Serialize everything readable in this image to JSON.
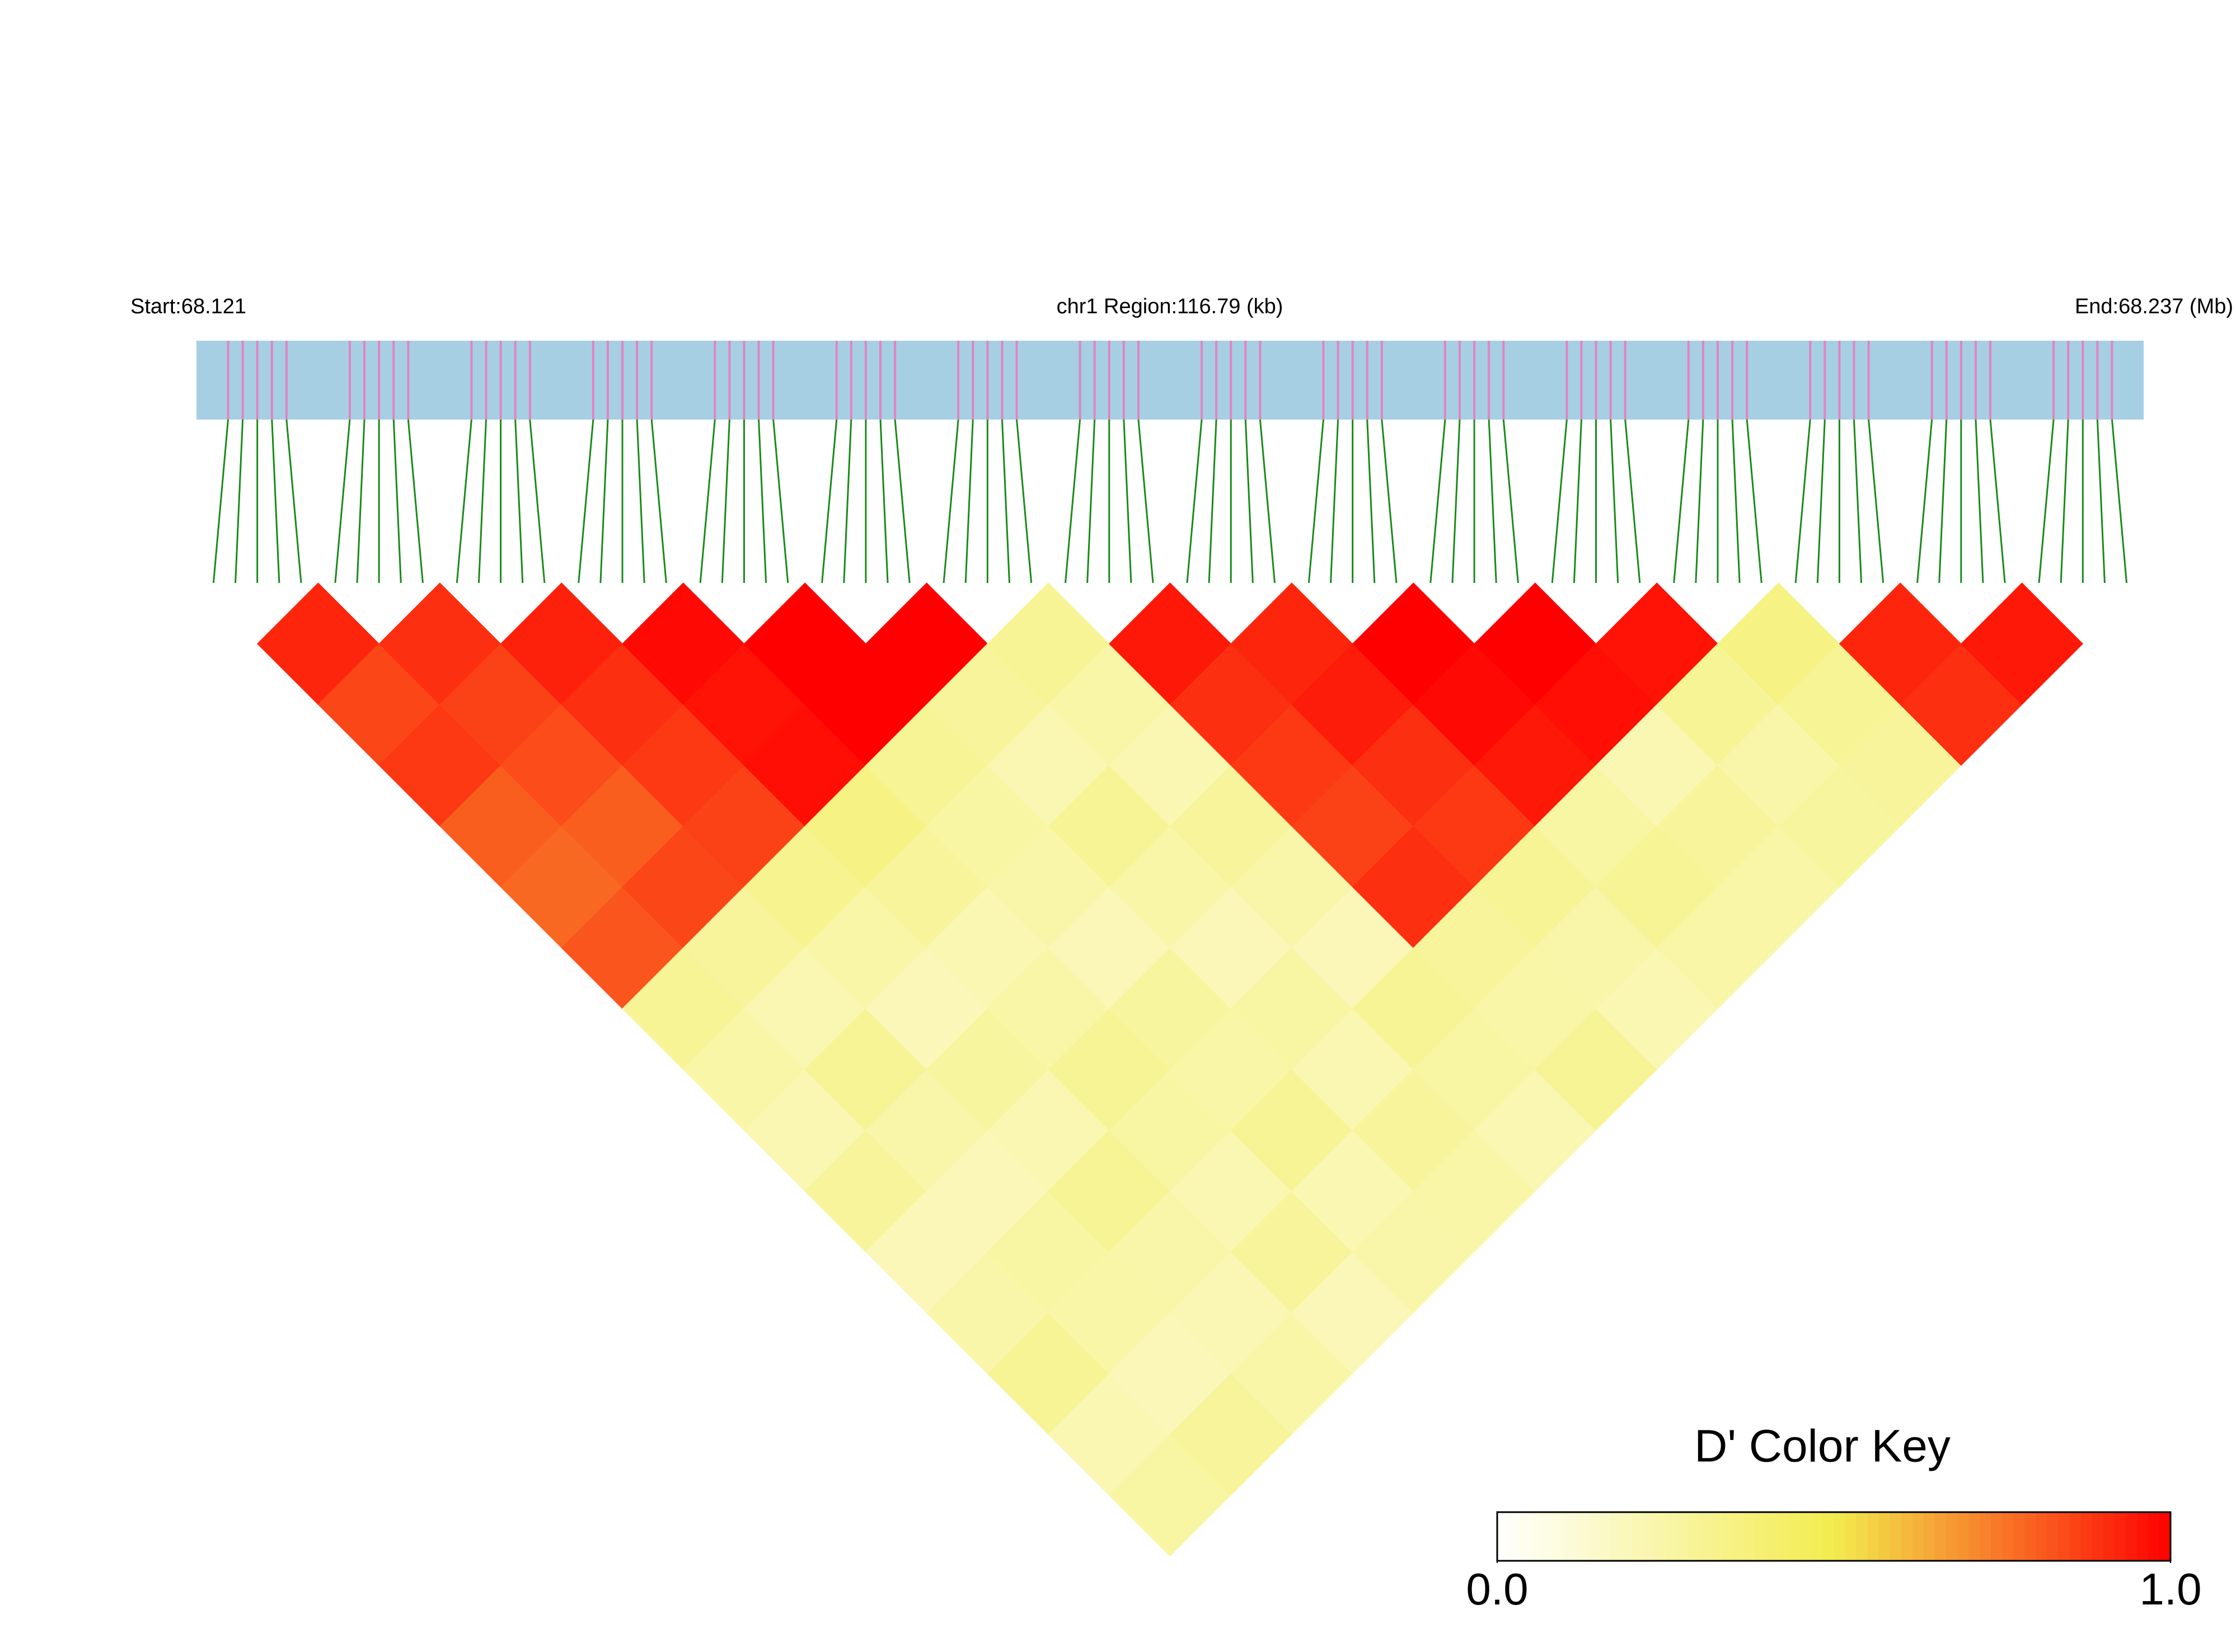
{
  "chart_data": {
    "type": "ld-heatmap",
    "start_label": "Start:68.121",
    "region_label": "chr1 Region:116.79 (kb)",
    "end_label": "End:68.237 (Mb)",
    "colorbar_title": "D' Color Key",
    "clim": [
      0,
      1
    ],
    "colorbar_ticks": [
      {
        "value": 0,
        "label": "0.0"
      },
      {
        "value": 1,
        "label": "1.0"
      }
    ],
    "colorscale": [
      "#ffffff",
      "#f2ec4e",
      "#ff0000"
    ],
    "bar_color": "#a6cfe3",
    "snp_color": "#e283c3",
    "link_color": "#1a8a1a",
    "d_prime": [
      [
        0.92,
        0.85,
        0.88,
        0.8,
        0.78,
        0.82,
        0.3,
        0.25,
        0.22,
        0.28,
        0.2,
        0.24,
        0.3,
        0.22,
        0.26
      ],
      [
        0.9,
        0.86,
        0.84,
        0.8,
        0.85,
        0.28,
        0.22,
        0.3,
        0.24,
        0.2,
        0.26,
        0.25,
        0.2,
        0.28
      ],
      [
        0.93,
        0.9,
        0.88,
        0.86,
        0.32,
        0.25,
        0.2,
        0.27,
        0.22,
        0.3,
        0.24,
        0.21,
        0.25
      ],
      [
        0.98,
        0.96,
        0.97,
        0.35,
        0.28,
        0.22,
        0.25,
        0.3,
        0.26,
        0.22,
        0.28,
        0.2
      ],
      [
        1,
        1,
        0.3,
        0.26,
        0.24,
        0.2,
        0.27,
        0.25,
        0.3,
        0.22,
        0.24
      ],
      [
        1,
        0.28,
        0.22,
        0.3,
        0.25,
        0.2,
        0.26,
        0.22,
        0.28,
        0.25
      ],
      [
        0.3,
        0.25,
        0.22,
        0.28,
        0.24,
        0.2,
        0.3,
        0.26,
        0.22
      ],
      [
        0.95,
        0.9,
        0.88,
        0.86,
        0.9,
        0.28,
        0.25,
        0.3
      ],
      [
        0.92,
        0.94,
        0.9,
        0.88,
        0.3,
        0.24,
        0.22
      ],
      [
        1,
        0.98,
        0.95,
        0.26,
        0.3,
        0.25
      ],
      [
        1,
        0.97,
        0.22,
        0.28,
        0.25
      ],
      [
        0.96,
        0.3,
        0.24,
        0.27
      ],
      [
        0.35,
        0.3,
        0.28
      ],
      [
        0.92,
        0.9
      ],
      [
        0.95
      ]
    ]
  }
}
